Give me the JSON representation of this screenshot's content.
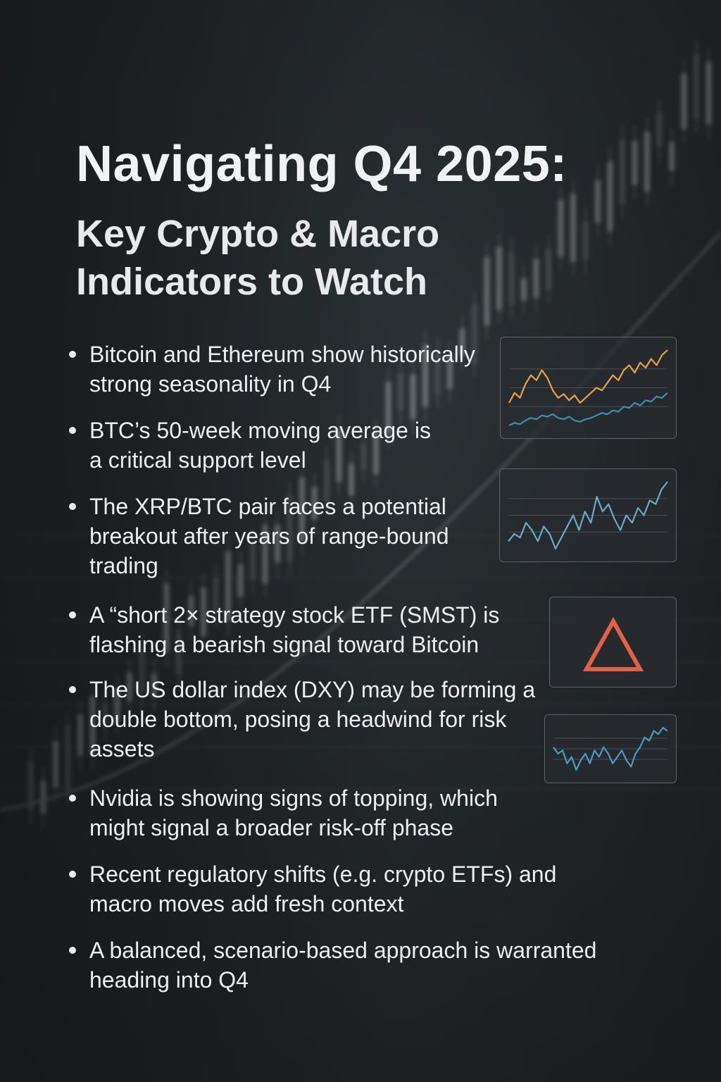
{
  "title": {
    "line1": "Navigating Q4 2025:",
    "line2": "Key Crypto & Macro Indicators to Watch"
  },
  "bullets": [
    {
      "text": "Bitcoin and Ethereum show historically strong seasonality in Q4"
    },
    {
      "text": "BTC’s 50-week moving average is a critical support level"
    },
    {
      "text": "The XRP/BTC pair faces a potential breakout after years of range-bound trading"
    },
    {
      "text": "A “short 2×  strategy stock ETF (SMST) is flashing a bearish signal toward Bitcoin"
    },
    {
      "text": "The US dollar index (DXY) may be forming a double bottom, posing a headwind for risk assets"
    },
    {
      "text": "Nvidia is showing signs of topping, which might signal a broader risk-off phase"
    },
    {
      "text": "Recent regulatory shifts (e.g. crypto ETFs) and macro moves add fresh context"
    },
    {
      "text": "A balanced, scenario-based approach is warranted heading into Q4"
    }
  ],
  "thumbnails": [
    {
      "name": "seasonality-chart",
      "series": [
        {
          "color": "#e8a04a",
          "values": [
            40,
            48,
            44,
            55,
            62,
            58,
            66,
            60,
            50,
            44,
            47,
            42,
            46,
            40,
            44,
            48,
            52,
            50,
            56,
            62,
            58,
            66,
            70,
            64,
            72,
            68,
            75,
            70,
            78,
            82
          ]
        },
        {
          "color": "#3b8fb0",
          "values": [
            22,
            24,
            23,
            26,
            28,
            27,
            30,
            29,
            31,
            28,
            27,
            29,
            26,
            25,
            27,
            28,
            30,
            32,
            31,
            34,
            33,
            37,
            36,
            40,
            38,
            42,
            41,
            45,
            44,
            48
          ]
        }
      ]
    },
    {
      "name": "xrp-btc-chart",
      "series": [
        {
          "color": "#6fa8c8",
          "values": [
            30,
            34,
            32,
            40,
            36,
            30,
            38,
            34,
            26,
            32,
            38,
            44,
            36,
            46,
            40,
            54,
            46,
            50,
            42,
            36,
            44,
            40,
            48,
            44,
            52,
            50,
            58,
            62
          ]
        }
      ]
    },
    {
      "name": "warning-card",
      "icon": "warning-triangle-icon",
      "color": "#e0604a"
    },
    {
      "name": "dxy-chart",
      "series": [
        {
          "color": "#4a9cc0",
          "values": [
            40,
            36,
            38,
            30,
            34,
            26,
            32,
            36,
            30,
            38,
            34,
            40,
            36,
            30,
            34,
            38,
            32,
            28,
            36,
            40,
            46,
            44,
            50,
            48,
            52,
            50
          ]
        }
      ]
    }
  ]
}
